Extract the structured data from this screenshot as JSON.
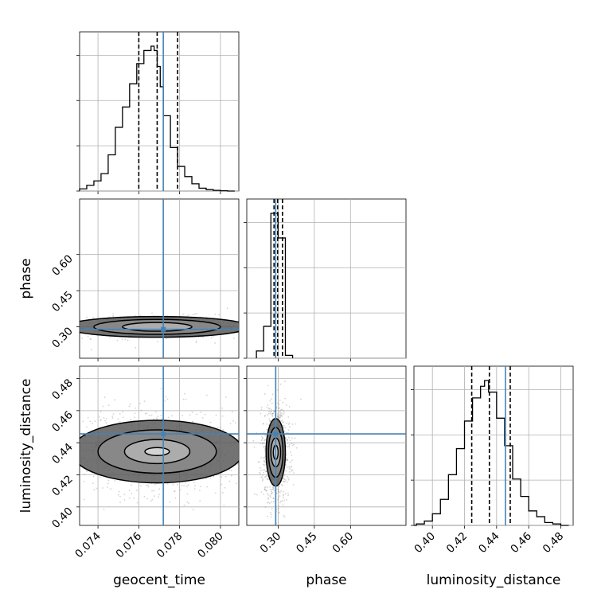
{
  "colors": {
    "truth": "#4682b4",
    "histogram": "#000000",
    "grid": "#b0b0b0",
    "scatter": "#808080"
  },
  "chart_data": {
    "type": "corner",
    "grid": true,
    "parameters": [
      {
        "name": "geocent_time",
        "label": "geocent_time",
        "range": [
          0.0731,
          0.0809
        ],
        "ticks": [
          0.074,
          0.076,
          0.078,
          0.08
        ],
        "tick_labels": [
          "0.074",
          "0.076",
          "0.078",
          "0.080"
        ],
        "truth": 0.0772,
        "quantiles": [
          0.076,
          0.0769,
          0.0779
        ],
        "histogram": {
          "bins": [
            0.0731,
            0.07345,
            0.0738,
            0.07415,
            0.0745,
            0.07485,
            0.0752,
            0.07555,
            0.0759,
            0.07625,
            0.0766,
            0.07675,
            0.0769,
            0.07705,
            0.0772,
            0.07755,
            0.0779,
            0.07825,
            0.0786,
            0.07895,
            0.0793,
            0.07965,
            0.08,
            0.08035,
            0.0807
          ],
          "counts": [
            0.015,
            0.04,
            0.07,
            0.12,
            0.25,
            0.44,
            0.58,
            0.74,
            0.88,
            0.97,
            1.0,
            0.97,
            0.86,
            0.72,
            0.52,
            0.3,
            0.17,
            0.1,
            0.05,
            0.02,
            0.01,
            0.005,
            0.002,
            0.0
          ]
        }
      },
      {
        "name": "phase",
        "label": "phase",
        "range": [
          0.17,
          0.83
        ],
        "ticks": [
          0.3,
          0.45,
          0.6
        ],
        "tick_labels": [
          "0.30",
          "0.45",
          "0.60"
        ],
        "truth": 0.29,
        "quantiles": [
          0.283,
          0.298,
          0.318
        ],
        "histogram": {
          "bins": [
            0.21,
            0.24,
            0.27,
            0.3,
            0.33,
            0.36
          ],
          "counts": [
            0.05,
            0.22,
            1.0,
            0.83,
            0.02
          ]
        }
      },
      {
        "name": "luminosity_distance",
        "label": "luminosity_distance",
        "range": [
          0.3885,
          0.4877
        ],
        "ticks": [
          0.4,
          0.42,
          0.44,
          0.46,
          0.48
        ],
        "tick_labels": [
          "0.40",
          "0.42",
          "0.44",
          "0.46",
          "0.48"
        ],
        "truth": 0.4455,
        "quantiles": [
          0.4245,
          0.4355,
          0.4485
        ],
        "histogram": {
          "bins": [
            0.3885,
            0.39,
            0.395,
            0.4,
            0.405,
            0.41,
            0.415,
            0.42,
            0.425,
            0.43,
            0.4325,
            0.435,
            0.44,
            0.445,
            0.45,
            0.455,
            0.46,
            0.465,
            0.47,
            0.475,
            0.48,
            0.485
          ],
          "counts": [
            0.0,
            0.01,
            0.03,
            0.08,
            0.18,
            0.35,
            0.53,
            0.72,
            0.88,
            0.96,
            1.0,
            0.92,
            0.74,
            0.55,
            0.32,
            0.2,
            0.1,
            0.06,
            0.02,
            0.01,
            0.0
          ]
        }
      }
    ],
    "panels_2d": [
      {
        "x": "geocent_time",
        "y": "phase",
        "center": [
          0.0769,
          0.3
        ],
        "contour_half_widths": [
          [
            0.0017,
            0.018
          ],
          [
            0.0031,
            0.031
          ],
          [
            0.0045,
            0.043
          ]
        ],
        "density_spread": [
          0.0013,
          0.014
        ]
      },
      {
        "x": "geocent_time",
        "y": "luminosity_distance",
        "center": [
          0.0769,
          0.4345
        ],
        "contour_half_widths": [
          [
            0.0006,
            0.0025
          ],
          [
            0.0016,
            0.0075
          ],
          [
            0.0029,
            0.0135
          ],
          [
            0.0042,
            0.0195
          ]
        ],
        "density_spread": [
          0.0014,
          0.0085
        ]
      },
      {
        "x": "phase",
        "y": "luminosity_distance",
        "center": [
          0.29,
          0.434
        ],
        "contour_half_widths": [
          [
            0.01,
            0.0045
          ],
          [
            0.02,
            0.009
          ],
          [
            0.03,
            0.0155
          ],
          [
            0.04,
            0.021
          ]
        ],
        "density_spread": [
          0.018,
          0.0095
        ]
      }
    ]
  }
}
